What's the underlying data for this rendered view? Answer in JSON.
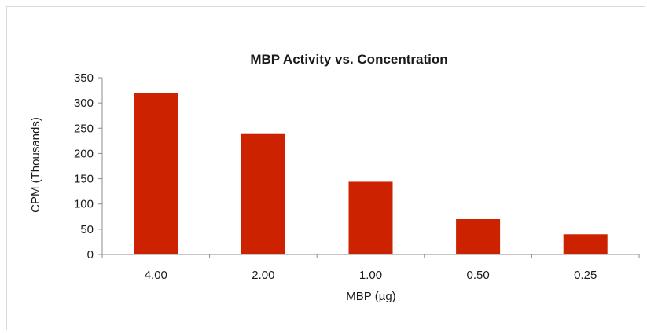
{
  "chart_data": {
    "type": "bar",
    "title": "MBP Activity vs. Concentration",
    "xlabel": "MBP (µg)",
    "ylabel": "CPM (Thousands)",
    "categories": [
      "4.00",
      "2.00",
      "1.00",
      "0.50",
      "0.25"
    ],
    "values": [
      320,
      240,
      144,
      70,
      40
    ],
    "ylim": [
      0,
      350
    ],
    "yticks": [
      "0",
      "50",
      "100",
      "150",
      "200",
      "250",
      "300",
      "350"
    ],
    "grid": false,
    "legend": "none",
    "bar_color": "#cc2200",
    "axis_color": "#8c8c8c"
  }
}
